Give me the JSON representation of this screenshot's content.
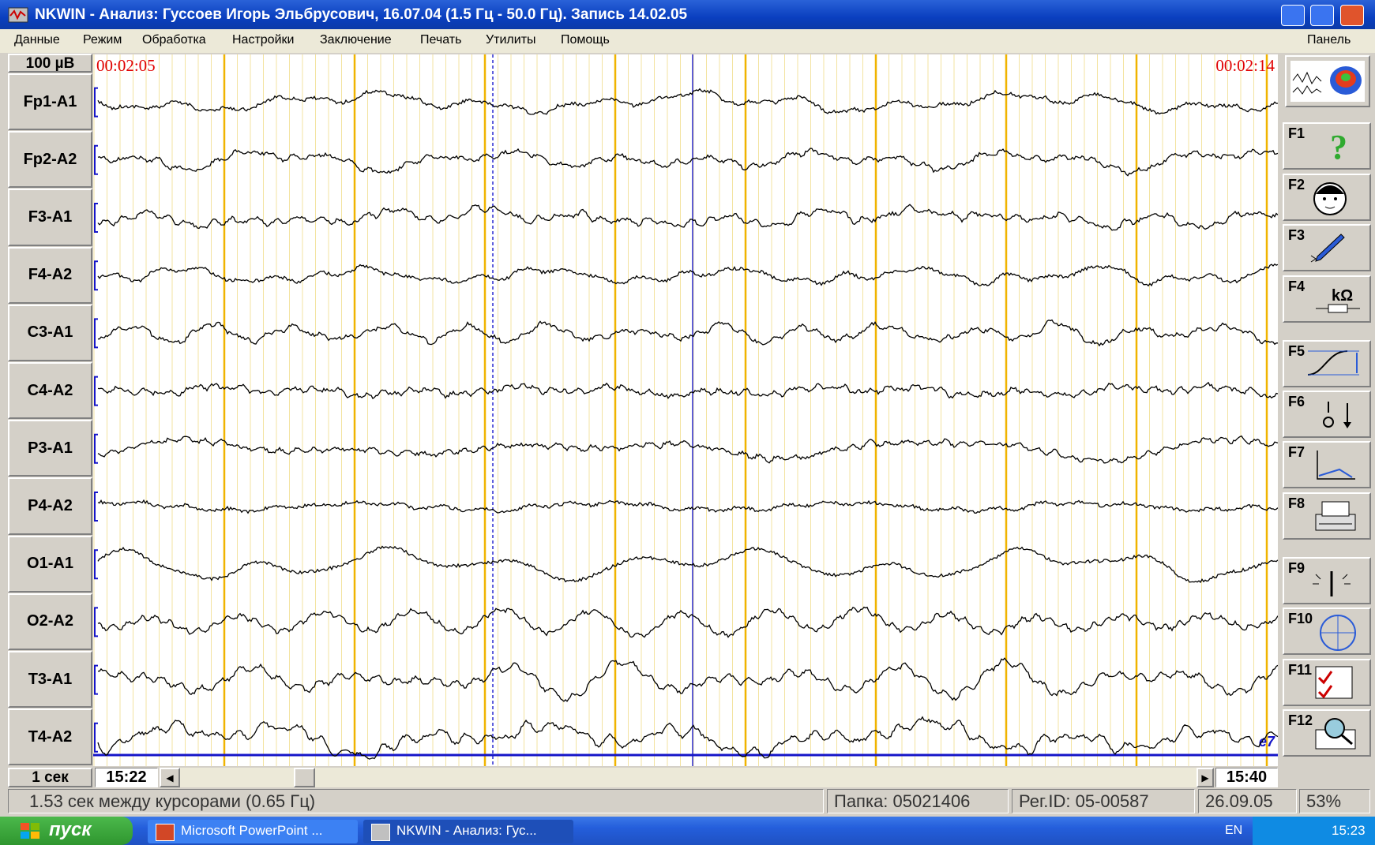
{
  "window": {
    "title": "NKWIN - Анализ: Гуссоев Игорь Эльбрусович, 16.07.04 (1.5 Гц - 50.0 Гц). Запись 14.02.05"
  },
  "menu": [
    "Данные",
    "Режим",
    "Обработка",
    "Настройки",
    "Заключение",
    "Печать",
    "Утилиты",
    "Помощь"
  ],
  "panel_label": "Панель",
  "eeg": {
    "scale_label": "100 µВ",
    "start_time": "00:02:05",
    "end_time": "00:02:14",
    "channels": [
      "Fp1-A1",
      "Fp2-A2",
      "F3-A1",
      "F4-A2",
      "C3-A1",
      "C4-A2",
      "P3-A1",
      "P4-A2",
      "O1-A1",
      "O2-A2",
      "T3-A1",
      "T4-A2"
    ],
    "marker": "e7",
    "time_scale": "1 сек",
    "scroll_start": "15:22",
    "scroll_end": "15:40"
  },
  "function_keys": [
    "F1",
    "F2",
    "F3",
    "F4",
    "F5",
    "F6",
    "F7",
    "F8",
    "F9",
    "F10",
    "F11",
    "F12"
  ],
  "impedance_icon": "kΩ",
  "status": [
    "1.53 сек между курсорами (0.65 Гц)",
    "Папка: 05021406",
    "Рег.ID: 05-00587",
    "26.09.05",
    "53%"
  ],
  "taskbar": {
    "start": "пуск",
    "tasks": [
      "Microsoft PowerPoint ...",
      "NKWIN - Анализ: Гус..."
    ],
    "language": "EN",
    "clock": "15:23"
  }
}
